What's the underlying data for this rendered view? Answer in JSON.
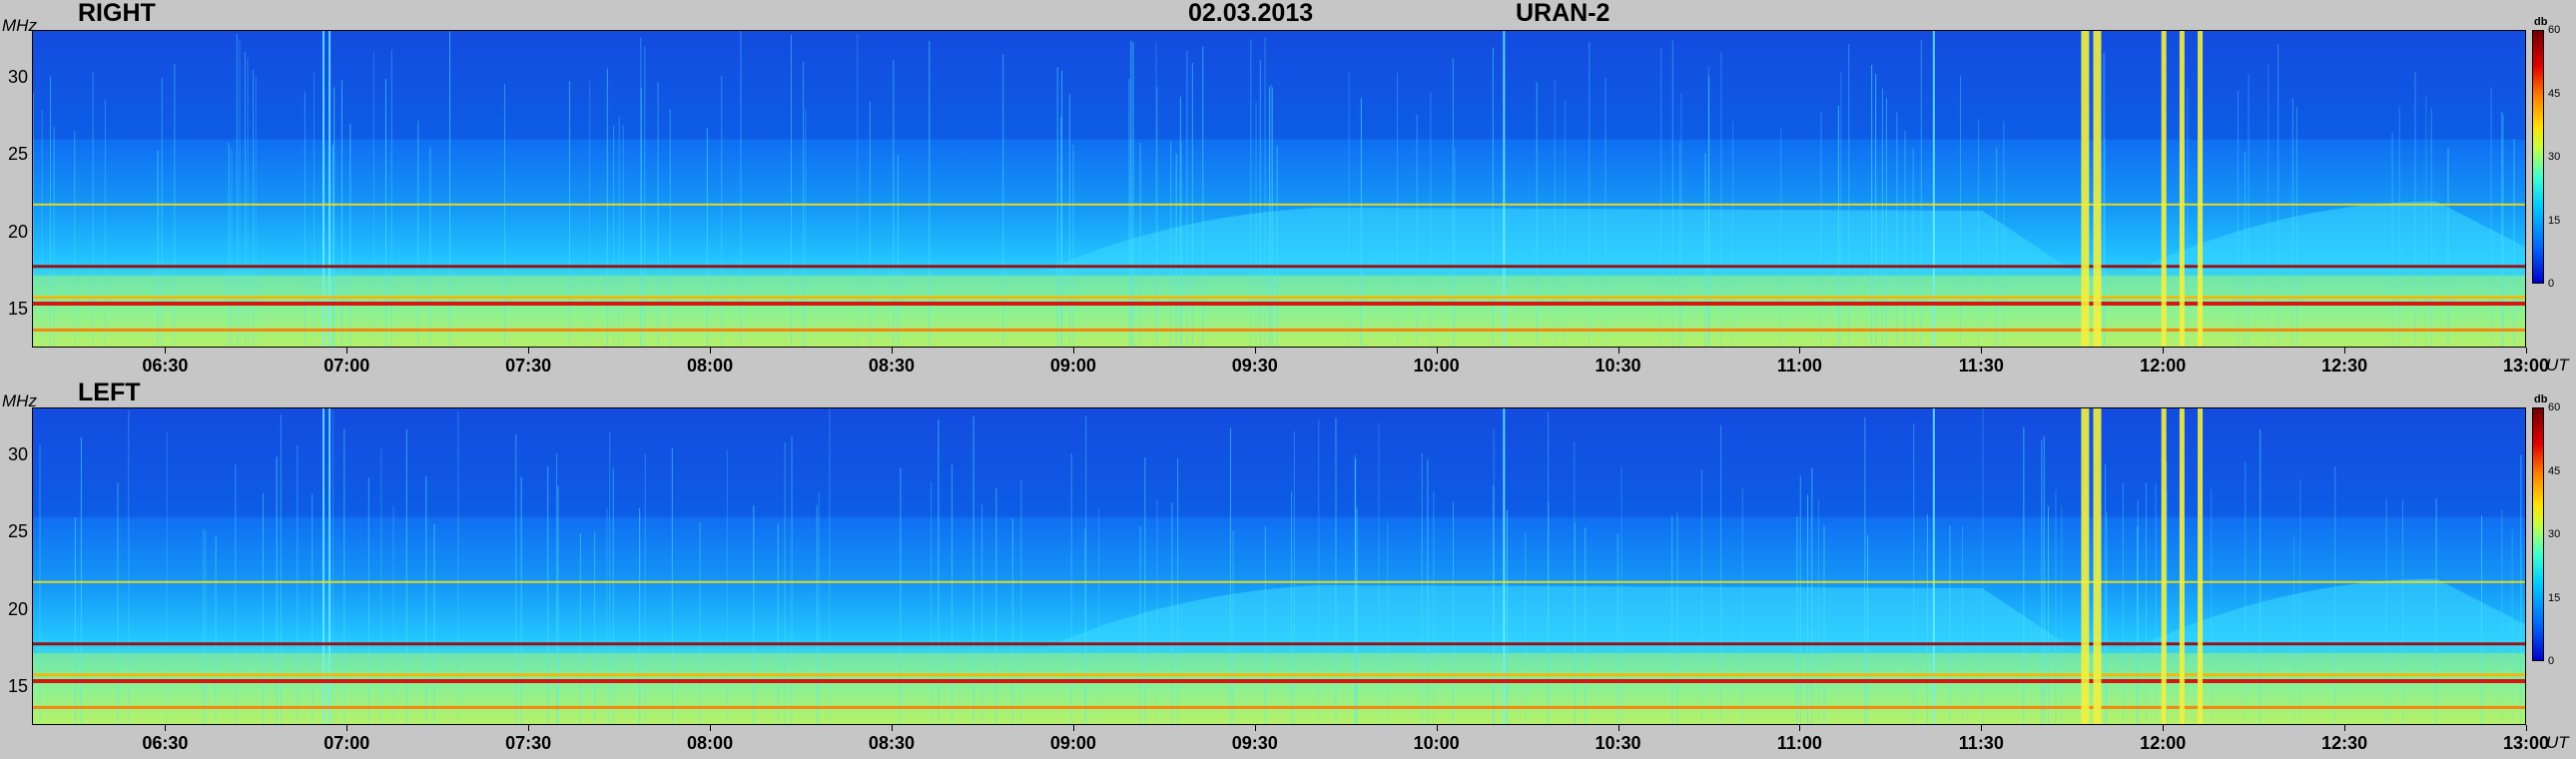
{
  "header": {
    "date": "02.03.2013",
    "station": "URAN-2"
  },
  "chart_data": [
    {
      "type": "heatmap",
      "title": "RIGHT",
      "ylabel": "MHz",
      "xlabel": "UT",
      "y_ticks": [
        "15",
        "20",
        "25",
        "30"
      ],
      "ylim": [
        12.5,
        33
      ],
      "x_ticks": [
        "06:30",
        "07:00",
        "07:30",
        "08:00",
        "08:30",
        "09:00",
        "09:30",
        "10:00",
        "10:30",
        "11:00",
        "11:30",
        "12:00",
        "12:30",
        "13:00"
      ],
      "xlim": [
        "06:08",
        "13:00"
      ],
      "colorbar": {
        "label": "db",
        "ticks": [
          "0",
          "15",
          "30",
          "45",
          "60"
        ],
        "range": [
          0,
          60
        ]
      },
      "emission_bands_mhz": [
        13.7,
        15.4,
        15.8,
        17.8,
        21.8
      ],
      "bursts_ut": [
        "11:47",
        "11:49",
        "12:00",
        "12:03",
        "12:06"
      ],
      "colors": {
        "low": "#0000cc",
        "background": "#1068f0",
        "mid": "#30e0ff",
        "high": "#ffe000",
        "max": "#800000"
      }
    },
    {
      "type": "heatmap",
      "title": "LEFT",
      "ylabel": "MHz",
      "xlabel": "UT",
      "y_ticks": [
        "15",
        "20",
        "25",
        "30"
      ],
      "ylim": [
        12.5,
        33
      ],
      "x_ticks": [
        "06:30",
        "07:00",
        "07:30",
        "08:00",
        "08:30",
        "09:00",
        "09:30",
        "10:00",
        "10:30",
        "11:00",
        "11:30",
        "12:00",
        "12:30",
        "13:00"
      ],
      "xlim": [
        "06:08",
        "13:00"
      ],
      "colorbar": {
        "label": "db",
        "ticks": [
          "0",
          "15",
          "30",
          "45",
          "60"
        ],
        "range": [
          0,
          60
        ]
      },
      "emission_bands_mhz": [
        13.7,
        15.4,
        15.8,
        17.8,
        21.8
      ],
      "bursts_ut": [
        "11:47",
        "11:49",
        "12:00",
        "12:03",
        "12:06"
      ],
      "colors": {
        "low": "#0000cc",
        "background": "#1068f0",
        "mid": "#30e0ff",
        "high": "#ffe000",
        "max": "#800000"
      }
    }
  ]
}
